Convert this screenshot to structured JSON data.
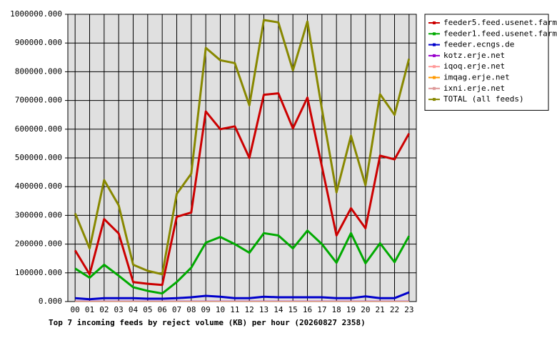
{
  "chart_data": {
    "type": "line",
    "title": "Top 7 incoming feeds by reject volume (KB) per hour (20260827 2358)",
    "categories": [
      "00",
      "01",
      "02",
      "03",
      "04",
      "05",
      "06",
      "07",
      "08",
      "09",
      "10",
      "11",
      "12",
      "13",
      "14",
      "15",
      "16",
      "17",
      "18",
      "19",
      "20",
      "21",
      "22",
      "23"
    ],
    "series": [
      {
        "name": "feeder5.feed.usenet.farm",
        "color": "#cc0000",
        "values": [
          178000,
          95000,
          287000,
          237000,
          68000,
          62000,
          58000,
          295000,
          310000,
          662000,
          600000,
          610000,
          500000,
          720000,
          725000,
          603000,
          710000,
          470000,
          230000,
          325000,
          255000,
          508000,
          495000,
          585000
        ]
      },
      {
        "name": "feeder1.feed.usenet.farm",
        "color": "#00aa00",
        "values": [
          115000,
          83000,
          128000,
          90000,
          50000,
          37000,
          28000,
          68000,
          118000,
          205000,
          225000,
          200000,
          170000,
          238000,
          230000,
          185000,
          247000,
          200000,
          135000,
          238000,
          133000,
          203000,
          137000,
          228000
        ]
      },
      {
        "name": "feeder.ecngs.de",
        "color": "#0000cc",
        "values": [
          12000,
          8000,
          12000,
          12000,
          12000,
          10000,
          10000,
          12000,
          15000,
          20000,
          17000,
          12000,
          12000,
          17000,
          15000,
          15000,
          15000,
          15000,
          12000,
          12000,
          18000,
          12000,
          12000,
          32000
        ]
      },
      {
        "name": "kotz.erje.net",
        "color": "#9900cc",
        "values": [
          2000,
          2000,
          2000,
          2000,
          2000,
          2000,
          2000,
          2000,
          2000,
          2000,
          2000,
          2000,
          2000,
          2000,
          2000,
          2000,
          2000,
          2000,
          2000,
          2000,
          2000,
          2000,
          2000,
          2000
        ]
      },
      {
        "name": "iqoq.erje.net",
        "color": "#ff9999",
        "values": [
          1000,
          1000,
          1000,
          1000,
          1000,
          1000,
          1000,
          1000,
          1000,
          1000,
          1000,
          1000,
          1000,
          1000,
          1000,
          1000,
          1000,
          1000,
          1000,
          1000,
          1000,
          1000,
          1000,
          1000
        ]
      },
      {
        "name": "imqag.erje.net",
        "color": "#ff9900",
        "values": [
          1000,
          1000,
          1000,
          1000,
          1000,
          1000,
          1000,
          1000,
          1000,
          1000,
          1000,
          1000,
          1000,
          1000,
          1000,
          1000,
          1000,
          1000,
          1000,
          1000,
          1000,
          1000,
          1000,
          1000
        ]
      },
      {
        "name": "ixni.erje.net",
        "color": "#dd9999",
        "values": [
          500,
          500,
          500,
          500,
          500,
          500,
          500,
          500,
          500,
          500,
          500,
          500,
          500,
          500,
          500,
          500,
          500,
          500,
          500,
          500,
          500,
          500,
          500,
          500
        ]
      },
      {
        "name": "TOTAL (all feeds)",
        "color": "#888800",
        "values": [
          307000,
          185000,
          423000,
          335000,
          128000,
          107000,
          95000,
          375000,
          445000,
          883000,
          840000,
          830000,
          683000,
          980000,
          972000,
          805000,
          975000,
          670000,
          380000,
          577000,
          405000,
          722000,
          650000,
          845000
        ]
      }
    ],
    "ylim": [
      0,
      1000000
    ],
    "yticks": [
      {
        "value": 0,
        "label": "0.000"
      },
      {
        "value": 100000,
        "label": "100000.000"
      },
      {
        "value": 200000,
        "label": "200000.000"
      },
      {
        "value": 300000,
        "label": "300000.000"
      },
      {
        "value": 400000,
        "label": "400000.000"
      },
      {
        "value": 500000,
        "label": "500000.000"
      },
      {
        "value": 600000,
        "label": "600000.000"
      },
      {
        "value": 700000,
        "label": "700000.000"
      },
      {
        "value": 800000,
        "label": "800000.000"
      },
      {
        "value": 900000,
        "label": "900000.000"
      },
      {
        "value": 1000000,
        "label": "1000000.000"
      }
    ],
    "grid": true,
    "legend": "right"
  }
}
